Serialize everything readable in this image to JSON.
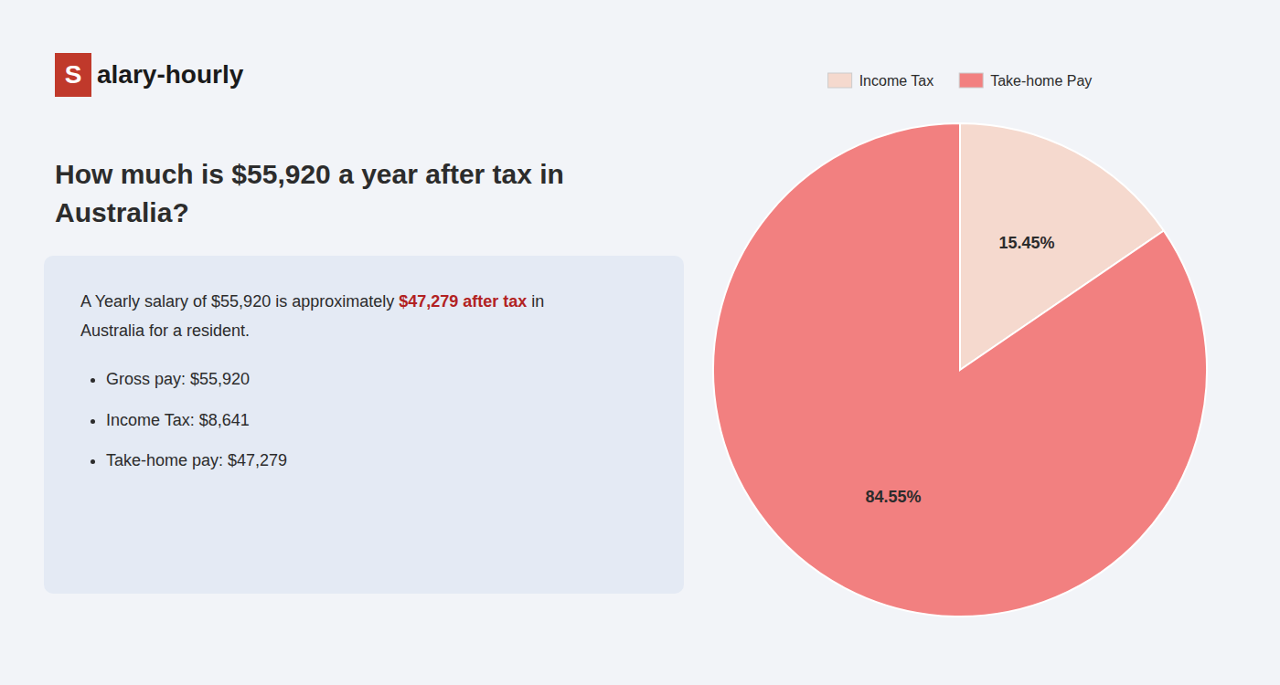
{
  "chart_data": {
    "type": "pie",
    "title": "How much is $55,920 a year after tax in\nAustralia?",
    "categories": [
      "Income Tax",
      "Take-home Pay"
    ],
    "values": [
      15.45,
      84.55
    ],
    "value_labels": [
      "15.45%",
      "84.55%"
    ],
    "colors": [
      "#f5d9ce",
      "#f28080"
    ],
    "data_labels": true,
    "legend": "top",
    "annotations": [
      "S",
      "alary-hourly",
      "A Yearly salary of $55,920 is approximately ",
      "$47,279 after tax",
      " in",
      "Australia for a resident.",
      "Gross pay: $55,920",
      "Income Tax: $8,641",
      "Take-home pay: $47,279"
    ]
  }
}
